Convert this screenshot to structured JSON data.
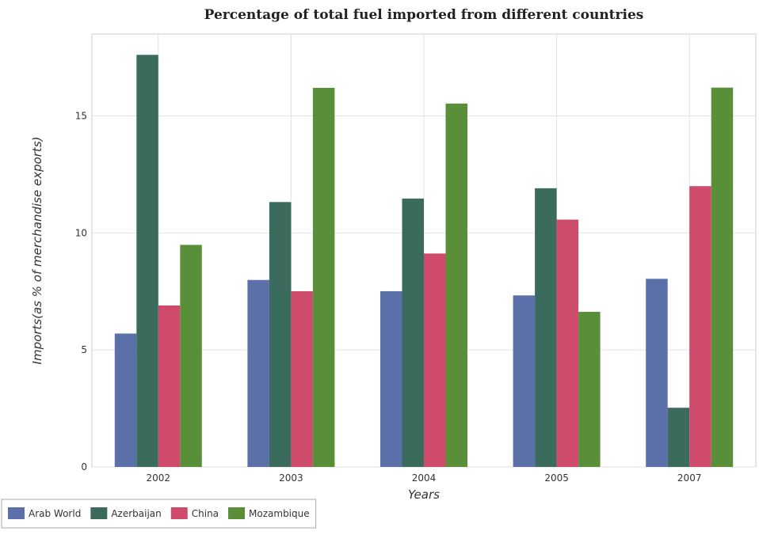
{
  "chart_data": {
    "type": "bar",
    "title": "Percentage of total fuel imported from different countries",
    "xlabel": "Years",
    "ylabel": "Imports(as % of merchandise exports)",
    "categories": [
      "2002",
      "2003",
      "2004",
      "2005",
      "2007"
    ],
    "ylim": [
      0,
      18.5
    ],
    "yticks": [
      0,
      5,
      10,
      15
    ],
    "grid": true,
    "legend_position": "bottom-left",
    "series": [
      {
        "name": "Arab World",
        "color": "#5b6fa8",
        "values": [
          5.7,
          7.99,
          7.51,
          7.33,
          8.04
        ]
      },
      {
        "name": "Azerbaijan",
        "color": "#3a6b5c",
        "values": [
          17.61,
          11.32,
          11.47,
          11.91,
          2.53
        ]
      },
      {
        "name": "China",
        "color": "#cf4b6c",
        "values": [
          6.9,
          7.51,
          9.12,
          10.57,
          12.0
        ]
      },
      {
        "name": "Mozambique",
        "color": "#5a8f3a",
        "values": [
          9.49,
          16.2,
          15.53,
          6.63,
          16.21
        ]
      }
    ]
  }
}
